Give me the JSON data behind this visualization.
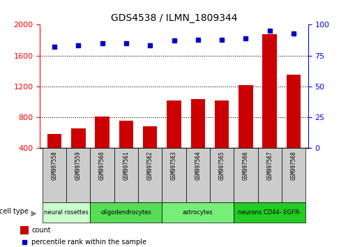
{
  "title": "GDS4538 / ILMN_1809344",
  "samples": [
    "GSM997558",
    "GSM997559",
    "GSM997560",
    "GSM997561",
    "GSM997562",
    "GSM997563",
    "GSM997564",
    "GSM997565",
    "GSM997566",
    "GSM997567",
    "GSM997568"
  ],
  "counts": [
    580,
    660,
    810,
    760,
    680,
    1020,
    1040,
    1020,
    1220,
    1880,
    1350
  ],
  "percentiles": [
    82,
    83,
    85,
    85,
    83,
    87,
    88,
    88,
    89,
    95,
    93
  ],
  "cell_types": [
    {
      "label": "neural rosettes",
      "start": 0,
      "end": 2,
      "color": "#ccffcc"
    },
    {
      "label": "oligodendrocytes",
      "start": 2,
      "end": 5,
      "color": "#55dd55"
    },
    {
      "label": "astrocytes",
      "start": 5,
      "end": 8,
      "color": "#77ee77"
    },
    {
      "label": "neurons CD44- EGFR-",
      "start": 8,
      "end": 11,
      "color": "#22cc22"
    }
  ],
  "bar_color": "#cc0000",
  "dot_color": "#0000cc",
  "ylim_left": [
    400,
    2000
  ],
  "ylim_right": [
    0,
    100
  ],
  "yticks_left": [
    400,
    800,
    1200,
    1600,
    2000
  ],
  "yticks_right": [
    0,
    25,
    50,
    75,
    100
  ],
  "grid_values": [
    800,
    1200,
    1600
  ],
  "legend_count_label": "count",
  "legend_pct_label": "percentile rank within the sample",
  "cell_type_label": "cell type",
  "background_color": "#ffffff",
  "sample_area_color": "#cccccc",
  "title_fontsize": 10,
  "tick_fontsize": 8,
  "bar_width": 0.6
}
